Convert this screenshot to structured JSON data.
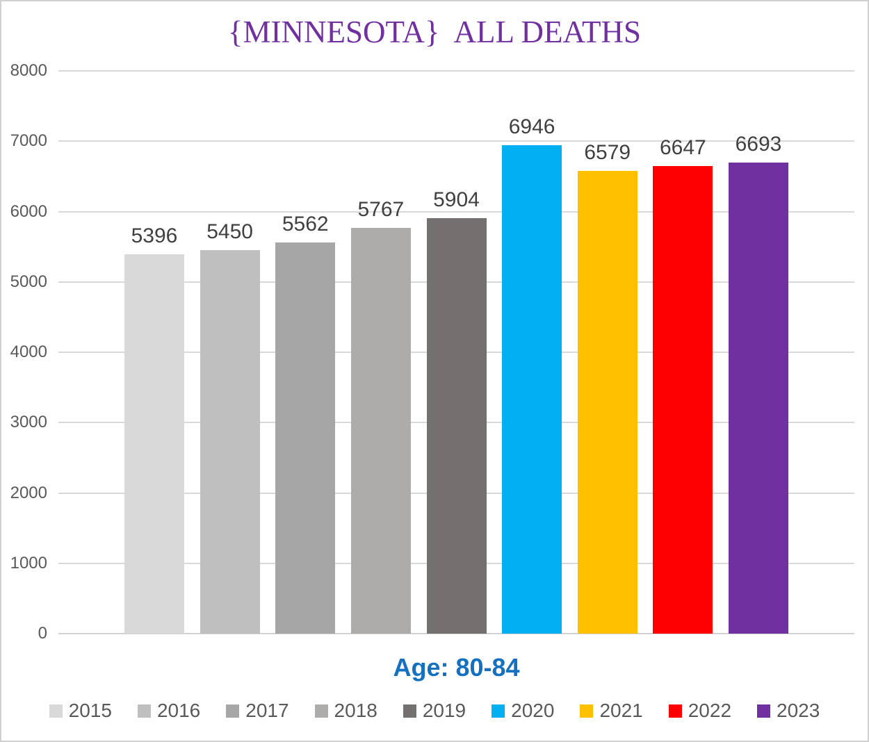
{
  "frame": {
    "background": "#ffffff",
    "border_color": "#d0d0d0"
  },
  "chart": {
    "title": "{MINNESOTA}  ALL DEATHS",
    "title_color": "#7030A0",
    "subtitle": "Age: 80-84",
    "subtitle_color": "#1570C0"
  },
  "chart_data": {
    "type": "bar",
    "title": "{MINNESOTA}  ALL DEATHS",
    "subtitle": "Age: 80-84",
    "categories": [
      "2015",
      "2016",
      "2017",
      "2018",
      "2019",
      "2020",
      "2021",
      "2022",
      "2023"
    ],
    "values": [
      5396,
      5450,
      5562,
      5767,
      5904,
      6946,
      6579,
      6647,
      6693
    ],
    "bar_colors": [
      "#D9D9D9",
      "#BFBFBF",
      "#A6A6A6",
      "#AEABAB",
      "#757070",
      "#00B0F0",
      "#FFC000",
      "#FF0000",
      "#7030A0"
    ],
    "xlabel": "",
    "ylabel": "",
    "ylim": [
      0,
      8000
    ],
    "ytick_interval": 1000,
    "ytick_labels": [
      "0",
      "1000",
      "2000",
      "3000",
      "4000",
      "5000",
      "6000",
      "7000",
      "8000"
    ],
    "grid": true,
    "gridline_color": "#D9D9D9",
    "baseline_color": "#D1D1D1",
    "data_labels": true,
    "data_label_color": "#404040",
    "axis_label_color": "#595959",
    "legend_position": "bottom",
    "legend_label_color": "#595959"
  }
}
